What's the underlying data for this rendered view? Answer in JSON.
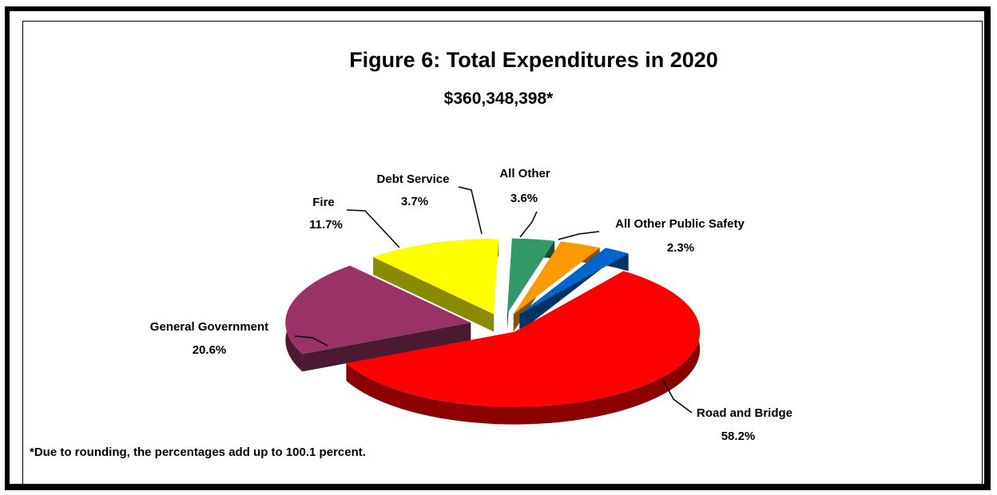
{
  "chart_data": {
    "type": "pie",
    "title": "Figure 6:  Total Expenditures in 2020",
    "subtitle": "$360,348,398*",
    "footnote": "*Due to rounding, the percentages add up to 100.1 percent.",
    "slices": [
      {
        "name": "Road and Bridge",
        "value": 58.2,
        "label": "58.2%",
        "color": "#ff0000",
        "side": "#8b0000"
      },
      {
        "name": "General Government",
        "value": 20.6,
        "label": "20.6%",
        "color": "#993366",
        "side": "#4a1a33"
      },
      {
        "name": "Fire",
        "value": 11.7,
        "label": "11.7%",
        "color": "#ffff00",
        "side": "#8a8a00"
      },
      {
        "name": "Debt Service",
        "value": 3.7,
        "label": "3.7%",
        "color": "#339966",
        "side": "#1a4d33"
      },
      {
        "name": "All Other",
        "value": 3.6,
        "label": "3.6%",
        "color": "#ff9900",
        "side": "#8a5200"
      },
      {
        "name": "All Other Public Safety",
        "value": 2.3,
        "label": "2.3%",
        "color": "#0066cc",
        "side": "#003366"
      }
    ]
  }
}
